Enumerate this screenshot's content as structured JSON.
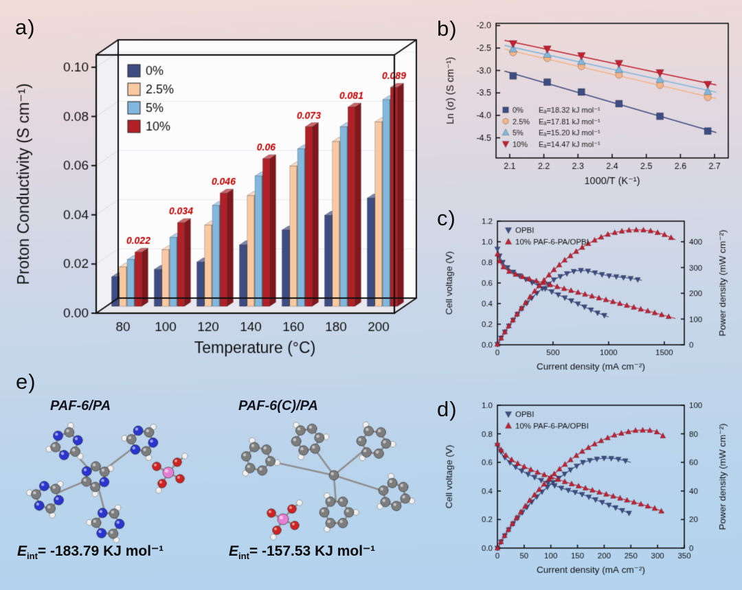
{
  "page": {
    "bg_top": "#f1dbd6",
    "bg_mid": "#ccd7e8",
    "bg_bottom": "#b3d3ee",
    "accent_red": "#c40000",
    "frame_color": "#101010"
  },
  "panels": {
    "a": {
      "label": "a)"
    },
    "b": {
      "label": "b)"
    },
    "c": {
      "label": "c)"
    },
    "d": {
      "label": "d)"
    },
    "e": {
      "label": "e)",
      "molecules": [
        {
          "title": "PAF-6/PA",
          "eint_symbol": "E",
          "eint_sub": "int",
          "eint_value": "= -183.79 KJ mol⁻¹"
        },
        {
          "title": "PAF-6(C)/PA",
          "eint_symbol": "E",
          "eint_sub": "int",
          "eint_value": "= -157.53 KJ mol⁻¹"
        }
      ]
    }
  },
  "chart_data": [
    {
      "id": "panel-a",
      "panel": "a",
      "type": "bar",
      "pseudo_3d": true,
      "xlabel": "Temperature (°C)",
      "ylabel": "Proton Conductivity (S cm⁻¹)",
      "categories": [
        "80",
        "100",
        "120",
        "140",
        "160",
        "180",
        "200"
      ],
      "yticks": [
        "0.00",
        "0.02",
        "0.04",
        "0.06",
        "0.08",
        "0.10"
      ],
      "ylim": [
        0,
        0.105
      ],
      "legend_position": "top-left",
      "label_color": "#c40000",
      "series": [
        {
          "name": "0%",
          "color": "#3d4c82",
          "values": [
            0.012,
            0.015,
            0.018,
            0.025,
            0.031,
            0.037,
            0.044
          ]
        },
        {
          "name": "2.5%",
          "color": "#f9c9a2",
          "values": [
            0.016,
            0.023,
            0.033,
            0.045,
            0.057,
            0.067,
            0.075
          ]
        },
        {
          "name": "5%",
          "color": "#82b8dd",
          "values": [
            0.019,
            0.028,
            0.041,
            0.053,
            0.064,
            0.073,
            0.084
          ]
        },
        {
          "name": "10%",
          "color": "#b02026",
          "values": [
            0.022,
            0.034,
            0.046,
            0.06,
            0.073,
            0.081,
            0.089
          ],
          "point_labels": [
            "0.022",
            "0.034",
            "0.046",
            "0.06",
            "0.073",
            "0.081",
            "0.089"
          ]
        }
      ]
    },
    {
      "id": "panel-b",
      "panel": "b",
      "type": "scatter",
      "xlabel": "1000/T (K⁻¹)",
      "ylabel": "Ln (σ) (S cm⁻¹)",
      "xlim": [
        2.06,
        2.74
      ],
      "ylim": [
        -4.95,
        -1.95
      ],
      "xticks": [
        "2.1",
        "2.2",
        "2.3",
        "2.4",
        "2.5",
        "2.6",
        "2.7"
      ],
      "yticks": [
        "-2.0",
        "-2.5",
        "-3.0",
        "-3.5",
        "-4.0",
        "-4.5"
      ],
      "x": [
        2.11,
        2.21,
        2.31,
        2.42,
        2.54,
        2.68
      ],
      "legend_position": "bottom-left",
      "series": [
        {
          "name": "0%",
          "legend": "Eₐ=18.32 kJ mol⁻¹",
          "marker": "square",
          "color": "#3d4c82",
          "values": [
            -3.12,
            -3.26,
            -3.48,
            -3.74,
            -4.02,
            -4.35
          ]
        },
        {
          "name": "2.5%",
          "legend": "Eₐ=17.81 kJ mol⁻¹",
          "marker": "circle",
          "color": "#f2b488",
          "values": [
            -2.6,
            -2.73,
            -2.91,
            -3.1,
            -3.33,
            -3.6
          ]
        },
        {
          "name": "5%",
          "legend": "Eₐ=15.20 kJ mol⁻¹",
          "marker": "triangle-up",
          "color": "#82b8dd",
          "values": [
            -2.52,
            -2.64,
            -2.8,
            -2.98,
            -3.2,
            -3.47
          ]
        },
        {
          "name": "10%",
          "legend": "Eₐ=14.47 kJ mol⁻¹",
          "marker": "triangle-down",
          "color": "#c22030",
          "values": [
            -2.4,
            -2.52,
            -2.67,
            -2.84,
            -3.05,
            -3.31
          ]
        }
      ]
    },
    {
      "id": "panel-c",
      "panel": "c",
      "type": "dual-line",
      "xlabel": "Current density (mA cm⁻²)",
      "ylabel_left": "Cell voltage (V)",
      "ylabel_right": "Power density (mW cm⁻²)",
      "xlim": [
        0,
        1680
      ],
      "ylim_left": [
        0,
        1.2
      ],
      "ylim_right": [
        0,
        480
      ],
      "xticks": [
        0,
        500,
        1000,
        1500
      ],
      "yticks_left": [
        "0.0",
        "0.2",
        "0.4",
        "0.6",
        "0.8",
        "1.0",
        "1.2"
      ],
      "yticks_right": [
        "0",
        "100",
        "200",
        "300",
        "400"
      ],
      "legend_position": "top-left",
      "series": [
        {
          "name": "OPBI",
          "color": "#3d4c82",
          "marker": "triangle-down",
          "voltage": [
            [
              0,
              0.93
            ],
            [
              20,
              0.86
            ],
            [
              40,
              0.81
            ],
            [
              70,
              0.77
            ],
            [
              100,
              0.74
            ],
            [
              150,
              0.7
            ],
            [
              200,
              0.67
            ],
            [
              250,
              0.64
            ],
            [
              300,
              0.61
            ],
            [
              350,
              0.585
            ],
            [
              400,
              0.56
            ],
            [
              450,
              0.535
            ],
            [
              500,
              0.51
            ],
            [
              550,
              0.485
            ],
            [
              600,
              0.46
            ],
            [
              650,
              0.435
            ],
            [
              700,
              0.41
            ],
            [
              750,
              0.385
            ],
            [
              800,
              0.36
            ],
            [
              850,
              0.335
            ],
            [
              900,
              0.31
            ],
            [
              950,
              0.29
            ],
            [
              1000,
              0.27
            ]
          ],
          "power": [
            [
              0,
              2
            ],
            [
              50,
              39
            ],
            [
              100,
              71
            ],
            [
              150,
              101
            ],
            [
              200,
              130
            ],
            [
              250,
              155
            ],
            [
              300,
              178
            ],
            [
              350,
              199
            ],
            [
              400,
              217
            ],
            [
              450,
              233
            ],
            [
              500,
              251
            ],
            [
              550,
              262
            ],
            [
              600,
              272
            ],
            [
              650,
              281
            ],
            [
              700,
              287
            ],
            [
              750,
              289
            ],
            [
              800,
              288
            ],
            [
              850,
              283
            ],
            [
              900,
              277
            ],
            [
              950,
              272
            ],
            [
              1000,
              268
            ],
            [
              1100,
              263
            ],
            [
              1200,
              258
            ],
            [
              1300,
              250
            ]
          ]
        },
        {
          "name": "10% PAF-6-PA/OPBI",
          "color": "#c22033",
          "marker": "triangle-up",
          "voltage": [
            [
              0,
              0.88
            ],
            [
              20,
              0.81
            ],
            [
              40,
              0.77
            ],
            [
              70,
              0.74
            ],
            [
              100,
              0.715
            ],
            [
              150,
              0.69
            ],
            [
              200,
              0.67
            ],
            [
              300,
              0.635
            ],
            [
              400,
              0.605
            ],
            [
              500,
              0.575
            ],
            [
              600,
              0.545
            ],
            [
              700,
              0.515
            ],
            [
              800,
              0.487
            ],
            [
              900,
              0.458
            ],
            [
              1000,
              0.43
            ],
            [
              1100,
              0.4
            ],
            [
              1200,
              0.372
            ],
            [
              1300,
              0.343
            ],
            [
              1400,
              0.315
            ],
            [
              1500,
              0.285
            ],
            [
              1600,
              0.255
            ]
          ],
          "power": [
            [
              0,
              2
            ],
            [
              50,
              38
            ],
            [
              100,
              72
            ],
            [
              200,
              134
            ],
            [
              300,
              190
            ],
            [
              400,
              242
            ],
            [
              500,
              288
            ],
            [
              600,
              327
            ],
            [
              700,
              360
            ],
            [
              800,
              389
            ],
            [
              900,
              412
            ],
            [
              1000,
              430
            ],
            [
              1100,
              440
            ],
            [
              1200,
              446
            ],
            [
              1300,
              446
            ],
            [
              1400,
              441
            ],
            [
              1500,
              428
            ],
            [
              1600,
              408
            ]
          ]
        }
      ]
    },
    {
      "id": "panel-d",
      "panel": "d",
      "type": "dual-line",
      "xlabel": "Current density (mA cm⁻²)",
      "ylabel_left": "Cell voltage (V)",
      "ylabel_right": "Power density (mW cm⁻²)",
      "xlim": [
        0,
        350
      ],
      "ylim_left": [
        0,
        1.0
      ],
      "ylim_right": [
        0,
        100
      ],
      "xticks": [
        0,
        50,
        100,
        150,
        200,
        250,
        300,
        350
      ],
      "yticks_left": [
        "0.0",
        "0.2",
        "0.4",
        "0.6",
        "0.8",
        "1.0"
      ],
      "yticks_right": [
        "0",
        "20",
        "40",
        "60",
        "80",
        "100"
      ],
      "legend_position": "top-left",
      "series": [
        {
          "name": "OPBI",
          "color": "#3d4c82",
          "marker": "triangle-down",
          "voltage": [
            [
              0,
              0.72
            ],
            [
              10,
              0.65
            ],
            [
              20,
              0.61
            ],
            [
              30,
              0.578
            ],
            [
              40,
              0.552
            ],
            [
              60,
              0.512
            ],
            [
              80,
              0.478
            ],
            [
              100,
              0.448
            ],
            [
              120,
              0.42
            ],
            [
              140,
              0.397
            ],
            [
              160,
              0.375
            ],
            [
              180,
              0.345
            ],
            [
              200,
              0.315
            ],
            [
              220,
              0.285
            ],
            [
              235,
              0.262
            ],
            [
              250,
              0.24
            ]
          ],
          "power": [
            [
              0,
              0
            ],
            [
              10,
              6.5
            ],
            [
              20,
              12.2
            ],
            [
              30,
              17.3
            ],
            [
              40,
              22.1
            ],
            [
              60,
              30.7
            ],
            [
              80,
              38.2
            ],
            [
              100,
              44.8
            ],
            [
              120,
              50.4
            ],
            [
              140,
              55.6
            ],
            [
              160,
              60
            ],
            [
              180,
              62.1
            ],
            [
              200,
              63
            ],
            [
              220,
              62.7
            ],
            [
              235,
              61.6
            ],
            [
              250,
              60
            ]
          ]
        },
        {
          "name": "10% PAF-6-PA/OPBI",
          "color": "#c22033",
          "marker": "triangle-up",
          "voltage": [
            [
              0,
              0.73
            ],
            [
              10,
              0.67
            ],
            [
              20,
              0.635
            ],
            [
              30,
              0.61
            ],
            [
              40,
              0.588
            ],
            [
              60,
              0.553
            ],
            [
              80,
              0.523
            ],
            [
              100,
              0.497
            ],
            [
              120,
              0.472
            ],
            [
              140,
              0.448
            ],
            [
              160,
              0.425
            ],
            [
              180,
              0.403
            ],
            [
              200,
              0.381
            ],
            [
              220,
              0.36
            ],
            [
              240,
              0.338
            ],
            [
              260,
              0.317
            ],
            [
              280,
              0.295
            ],
            [
              295,
              0.278
            ],
            [
              305,
              0.262
            ],
            [
              312,
              0.25
            ]
          ],
          "power": [
            [
              0,
              0
            ],
            [
              10,
              6.7
            ],
            [
              20,
              12.7
            ],
            [
              30,
              18.3
            ],
            [
              40,
              23.5
            ],
            [
              60,
              33.2
            ],
            [
              80,
              41.8
            ],
            [
              100,
              49.7
            ],
            [
              120,
              56.6
            ],
            [
              140,
              62.7
            ],
            [
              160,
              68
            ],
            [
              180,
              72.5
            ],
            [
              200,
              76.2
            ],
            [
              220,
              79.2
            ],
            [
              240,
              81.1
            ],
            [
              260,
              82.4
            ],
            [
              280,
              82.6
            ],
            [
              295,
              82
            ],
            [
              305,
              79.9
            ],
            [
              312,
              78
            ]
          ]
        }
      ]
    }
  ]
}
